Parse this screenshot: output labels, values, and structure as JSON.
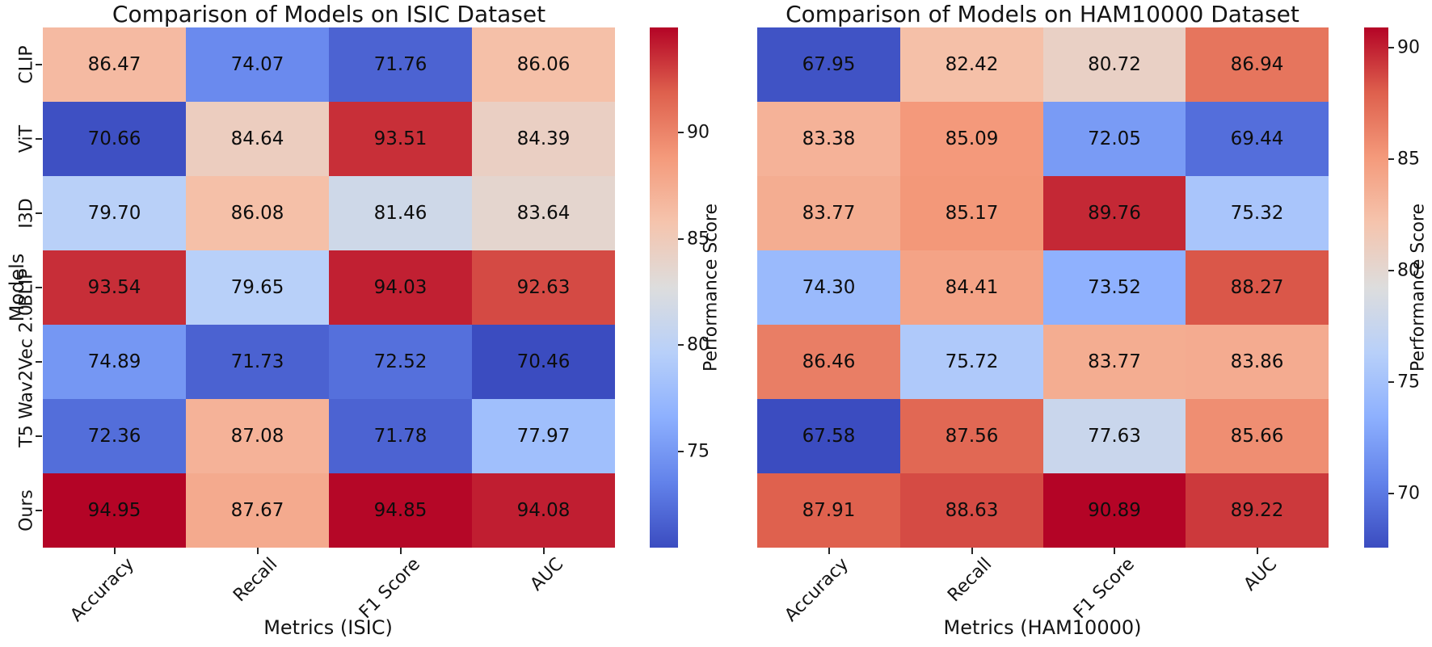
{
  "chart_data": [
    {
      "type": "heatmap",
      "title": "Comparison of Models on ISIC Dataset",
      "xlabel": "Metrics (ISIC)",
      "ylabel": "Models",
      "rows": [
        "CLIP",
        "ViT",
        "I3D",
        "BLIP",
        "Wav2Vec 2.0",
        "T5",
        "Ours"
      ],
      "columns": [
        "Accuracy",
        "Recall",
        "F1 Score",
        "AUC"
      ],
      "values": [
        [
          86.47,
          74.07,
          71.76,
          86.06
        ],
        [
          70.66,
          84.64,
          93.51,
          84.39
        ],
        [
          79.7,
          86.08,
          81.46,
          83.64
        ],
        [
          93.54,
          79.65,
          94.03,
          92.63
        ],
        [
          74.89,
          71.73,
          72.52,
          70.46
        ],
        [
          72.36,
          87.08,
          71.78,
          77.97
        ],
        [
          94.95,
          87.67,
          94.85,
          94.08
        ]
      ],
      "vmin": 70.46,
      "vmax": 94.95,
      "annotation_decimals": 2,
      "show_row_labels": true,
      "colorbar": {
        "label": "Performance Score",
        "ticks": [
          90,
          85,
          80,
          75
        ]
      }
    },
    {
      "type": "heatmap",
      "title": "Comparison of Models on HAM10000 Dataset",
      "xlabel": "Metrics (HAM10000)",
      "ylabel": "",
      "rows": [
        "CLIP",
        "ViT",
        "I3D",
        "BLIP",
        "Wav2Vec 2.0",
        "T5",
        "Ours"
      ],
      "columns": [
        "Accuracy",
        "Recall",
        "F1 Score",
        "AUC"
      ],
      "values": [
        [
          67.95,
          82.42,
          80.72,
          86.94
        ],
        [
          83.38,
          85.09,
          72.05,
          69.44
        ],
        [
          83.77,
          85.17,
          89.76,
          75.32
        ],
        [
          74.3,
          84.41,
          73.52,
          88.27
        ],
        [
          86.46,
          75.72,
          83.77,
          83.86
        ],
        [
          67.58,
          87.56,
          77.63,
          85.66
        ],
        [
          87.91,
          88.63,
          90.89,
          89.22
        ]
      ],
      "vmin": 67.58,
      "vmax": 90.89,
      "annotation_decimals": 2,
      "show_row_labels": false,
      "colorbar": {
        "label": "Performance Score",
        "ticks": [
          90,
          85,
          80,
          75,
          70
        ]
      }
    }
  ],
  "style": {
    "colormap": "coolwarm",
    "colormap_stops": [
      {
        "t": 0.0,
        "color": "#3B4CC0"
      },
      {
        "t": 0.125,
        "color": "#6282EA"
      },
      {
        "t": 0.25,
        "color": "#8DB0FE"
      },
      {
        "t": 0.375,
        "color": "#B8D0F9"
      },
      {
        "t": 0.5,
        "color": "#DDDDDD"
      },
      {
        "t": 0.625,
        "color": "#F5C4AD"
      },
      {
        "t": 0.75,
        "color": "#F49A7B"
      },
      {
        "t": 0.875,
        "color": "#DE604D"
      },
      {
        "t": 1.0,
        "color": "#B40426"
      }
    ],
    "annotation_color": "#0d0d0d",
    "text_color": "#141414",
    "background": "#ffffff"
  }
}
